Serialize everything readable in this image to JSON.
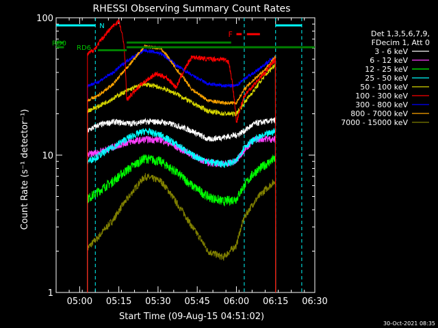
{
  "chart_data": {
    "type": "line",
    "title": "RHESSI Observing Summary Count Rates",
    "xlabel": "Start Time (09-Aug-15 04:51:02)",
    "ylabel": "Count Rate (s⁻¹ detector⁻¹)",
    "yscale": "log",
    "ylim": [
      1,
      100
    ],
    "xlim_minutes": [
      0,
      99
    ],
    "y_ticks": [
      "1",
      "10",
      "100"
    ],
    "x_ticks": [
      {
        "label": "05:00",
        "minute": 9
      },
      {
        "label": "05:15",
        "minute": 24
      },
      {
        "label": "05:30",
        "minute": 39
      },
      {
        "label": "05:45",
        "minute": 54
      },
      {
        "label": "06:00",
        "minute": 69
      },
      {
        "label": "06:15",
        "minute": 84
      },
      {
        "label": "06:30",
        "minute": 99
      }
    ],
    "legend_header": [
      "Det 1,3,5,6,7,9,",
      "FDecim 1, Att 0"
    ],
    "legend_position": "right",
    "footer": "30-Oct-2021 08:35",
    "series": [
      {
        "name": "3 - 6 keV",
        "color": "#ffffff",
        "noise": 0.05,
        "points": [
          [
            12,
            15
          ],
          [
            16,
            16.5
          ],
          [
            22,
            17.5
          ],
          [
            28,
            17
          ],
          [
            34,
            17.5
          ],
          [
            40,
            17.5
          ],
          [
            46,
            16.5
          ],
          [
            52,
            15
          ],
          [
            58,
            13
          ],
          [
            64,
            13.5
          ],
          [
            69,
            14
          ],
          [
            72,
            15
          ],
          [
            76,
            17
          ],
          [
            80,
            17.5
          ],
          [
            84,
            18
          ]
        ]
      },
      {
        "name": "6 - 12 keV",
        "color": "#ff3fff",
        "noise": 0.06,
        "points": [
          [
            12,
            10
          ],
          [
            16,
            10.5
          ],
          [
            22,
            11.5
          ],
          [
            28,
            12.5
          ],
          [
            34,
            13
          ],
          [
            40,
            13
          ],
          [
            46,
            11.5
          ],
          [
            52,
            10
          ],
          [
            58,
            8.8
          ],
          [
            64,
            8.6
          ],
          [
            69,
            9
          ],
          [
            72,
            11
          ],
          [
            76,
            13
          ],
          [
            80,
            13.2
          ],
          [
            84,
            13
          ]
        ]
      },
      {
        "name": "12 - 25 keV",
        "color": "#00ff00",
        "noise": 0.08,
        "points": [
          [
            12,
            4.8
          ],
          [
            16,
            5.4
          ],
          [
            22,
            6.5
          ],
          [
            28,
            8
          ],
          [
            34,
            9.5
          ],
          [
            40,
            9
          ],
          [
            46,
            7.5
          ],
          [
            52,
            6
          ],
          [
            58,
            5
          ],
          [
            64,
            4.6
          ],
          [
            69,
            4.8
          ],
          [
            72,
            6
          ],
          [
            76,
            7.5
          ],
          [
            80,
            8.5
          ],
          [
            84,
            9.5
          ]
        ]
      },
      {
        "name": "25 - 50 keV",
        "color": "#00ffff",
        "noise": 0.06,
        "points": [
          [
            12,
            9
          ],
          [
            16,
            9.8
          ],
          [
            22,
            11.5
          ],
          [
            28,
            13.5
          ],
          [
            34,
            15
          ],
          [
            40,
            14
          ],
          [
            46,
            12
          ],
          [
            52,
            10
          ],
          [
            58,
            9
          ],
          [
            64,
            8.6
          ],
          [
            69,
            9
          ],
          [
            72,
            11.5
          ],
          [
            76,
            13
          ],
          [
            80,
            14
          ],
          [
            84,
            15
          ]
        ]
      },
      {
        "name": "50 - 100 keV",
        "color": "#d7d700",
        "noise": 0.04,
        "points": [
          [
            12,
            21
          ],
          [
            16,
            22.5
          ],
          [
            22,
            26
          ],
          [
            28,
            30
          ],
          [
            34,
            33
          ],
          [
            40,
            31
          ],
          [
            46,
            28
          ],
          [
            52,
            24
          ],
          [
            58,
            21
          ],
          [
            64,
            20
          ],
          [
            69,
            20
          ],
          [
            72,
            24
          ],
          [
            76,
            30
          ],
          [
            80,
            38
          ],
          [
            84,
            46
          ]
        ]
      },
      {
        "name": "100 - 300 keV",
        "color": "#ff0000",
        "noise": 0.04,
        "points": [
          [
            12,
            54
          ],
          [
            15,
            60
          ],
          [
            19,
            76
          ],
          [
            21,
            84
          ],
          [
            24,
            95
          ],
          [
            26,
            63
          ],
          [
            27,
            25
          ],
          [
            32,
            32
          ],
          [
            38,
            39
          ],
          [
            42,
            37
          ],
          [
            46,
            31
          ],
          [
            52,
            52
          ],
          [
            58,
            50
          ],
          [
            64,
            50
          ],
          [
            66,
            48
          ],
          [
            69,
            17
          ],
          [
            72,
            27
          ],
          [
            76,
            33
          ],
          [
            80,
            40
          ],
          [
            84,
            50
          ]
        ]
      },
      {
        "name": "300 - 800 keV",
        "color": "#0000ff",
        "noise": 0.03,
        "points": [
          [
            12,
            32
          ],
          [
            16,
            34
          ],
          [
            22,
            40
          ],
          [
            28,
            50
          ],
          [
            34,
            58
          ],
          [
            40,
            55
          ],
          [
            46,
            45
          ],
          [
            52,
            38
          ],
          [
            58,
            33
          ],
          [
            64,
            32
          ],
          [
            69,
            32
          ],
          [
            72,
            36
          ],
          [
            76,
            40
          ],
          [
            80,
            46
          ],
          [
            84,
            52
          ]
        ]
      },
      {
        "name": "800 - 7000 keV",
        "color": "#ffa500",
        "noise": 0.03,
        "points": [
          [
            12,
            25
          ],
          [
            16,
            27
          ],
          [
            22,
            33
          ],
          [
            28,
            45
          ],
          [
            34,
            62
          ],
          [
            40,
            60
          ],
          [
            46,
            42
          ],
          [
            52,
            30
          ],
          [
            58,
            25
          ],
          [
            64,
            24
          ],
          [
            69,
            24
          ],
          [
            72,
            30
          ],
          [
            76,
            36
          ],
          [
            80,
            42
          ],
          [
            84,
            52
          ]
        ]
      },
      {
        "name": "7000 - 15000 keV",
        "color": "#808000",
        "noise": 0.06,
        "points": [
          [
            12,
            2.1
          ],
          [
            16,
            2.5
          ],
          [
            22,
            3.4
          ],
          [
            28,
            5
          ],
          [
            34,
            7
          ],
          [
            40,
            6.5
          ],
          [
            46,
            4.5
          ],
          [
            52,
            3
          ],
          [
            58,
            2
          ],
          [
            64,
            1.8
          ],
          [
            69,
            2.2
          ],
          [
            72,
            3.5
          ],
          [
            76,
            4.6
          ],
          [
            80,
            5.6
          ],
          [
            84,
            6.5
          ]
        ]
      }
    ],
    "markers": {
      "gaps": [
        {
          "from": 0,
          "to": 12
        },
        {
          "from": 85,
          "to": 99
        }
      ],
      "cyan_dashed_lines_minutes": [
        15,
        72,
        84,
        94
      ],
      "cyan_bars": [
        {
          "label": "N",
          "from": 0,
          "to": 15,
          "value": 88
        },
        {
          "label": "",
          "from": 84,
          "to": 94,
          "value": 88
        }
      ],
      "rd0": {
        "label": "RD0",
        "value": 66,
        "segments": [
          [
            0,
            3
          ],
          [
            27,
            67
          ]
        ]
      },
      "rd6": {
        "label": "RD6",
        "value": 61,
        "segments": [
          [
            0,
            3
          ],
          [
            27,
            67
          ],
          [
            67,
            99
          ]
        ]
      },
      "rd6_extra": {
        "value": 58,
        "segments": [
          [
            16,
            27
          ]
        ]
      },
      "flare_flag": {
        "label": "F",
        "value": 76,
        "segments": [
          [
            69,
            71
          ],
          [
            73,
            78
          ]
        ]
      }
    }
  }
}
